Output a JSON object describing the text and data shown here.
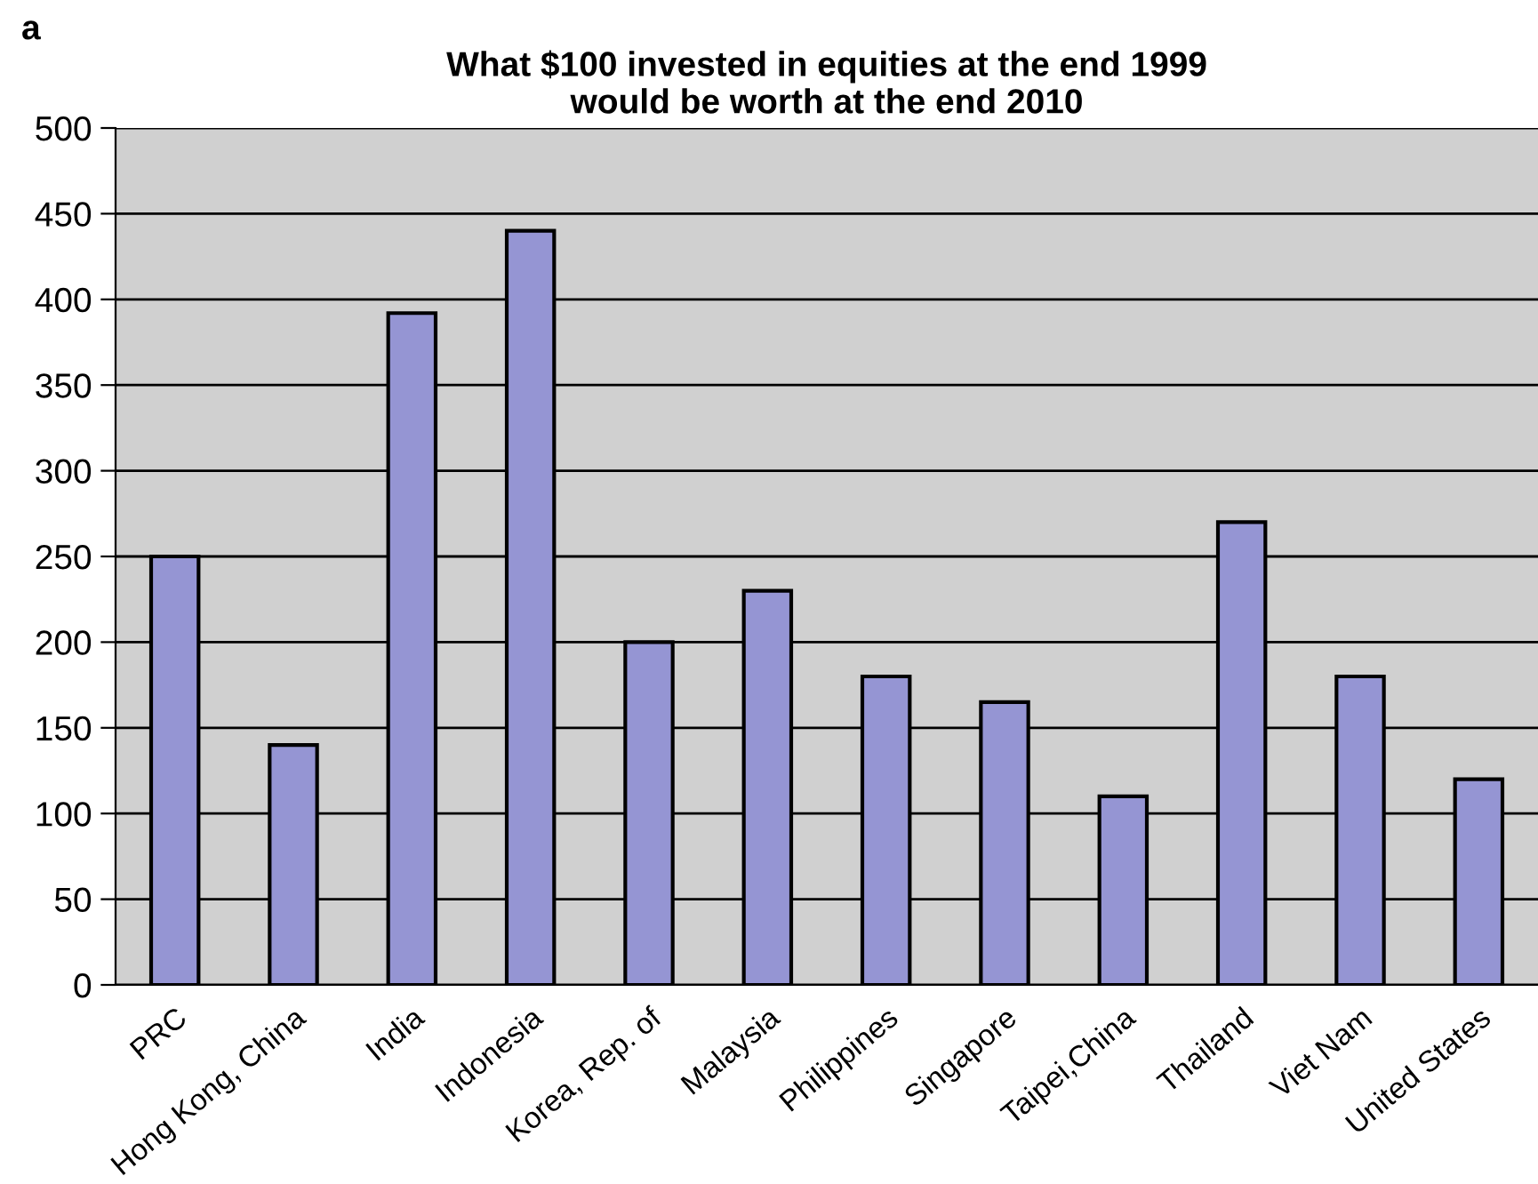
{
  "chart_data": {
    "type": "bar",
    "title": "What $100 invested in equities at the end 1999\nwould be worth at the end 2010",
    "categories": [
      "PRC",
      "Hong Kong, China",
      "India",
      "Indonesia",
      "Korea, Rep. of",
      "Malaysia",
      "Philippines",
      "Singapore",
      "Taipei,China",
      "Thailand",
      "Viet Nam",
      "United States"
    ],
    "values": [
      250,
      140,
      392,
      440,
      200,
      230,
      180,
      165,
      110,
      270,
      180,
      120
    ],
    "color": "#9595d3",
    "ylim": [
      0,
      500
    ],
    "yticks": [
      0,
      50,
      100,
      150,
      200,
      250,
      300,
      350,
      400,
      450,
      500
    ],
    "grid": "y",
    "annotations": [
      "a"
    ]
  }
}
